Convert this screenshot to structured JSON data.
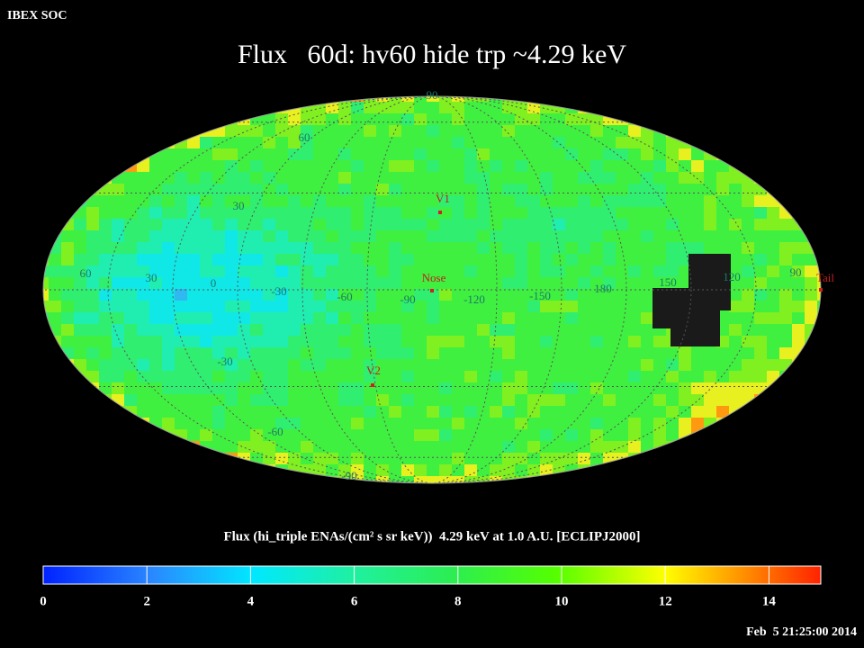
{
  "header": {
    "source": "IBEX SOC",
    "title": "Flux   60d: hv60 hide trp ~4.29 keV",
    "timestamp": "Feb  5 21:25:00 2014"
  },
  "map": {
    "grid_labels": [
      "90",
      "60",
      "30",
      "60",
      "30",
      "0",
      "-30",
      "-60",
      "-90",
      "-120",
      "-150",
      "180",
      "150",
      "120",
      "90",
      "-30",
      "-60",
      "-90"
    ],
    "markers": [
      "V1",
      "Nose",
      "V2",
      "Tail"
    ]
  },
  "colorbar": {
    "label": "Flux (hi_triple ENAs/(cm² s sr keV))  4.29 keV at 1.0 A.U. [ECLIPJ2000]",
    "range": [
      0,
      15
    ],
    "ticks": [
      0,
      2,
      4,
      6,
      8,
      10,
      12,
      14
    ]
  }
}
